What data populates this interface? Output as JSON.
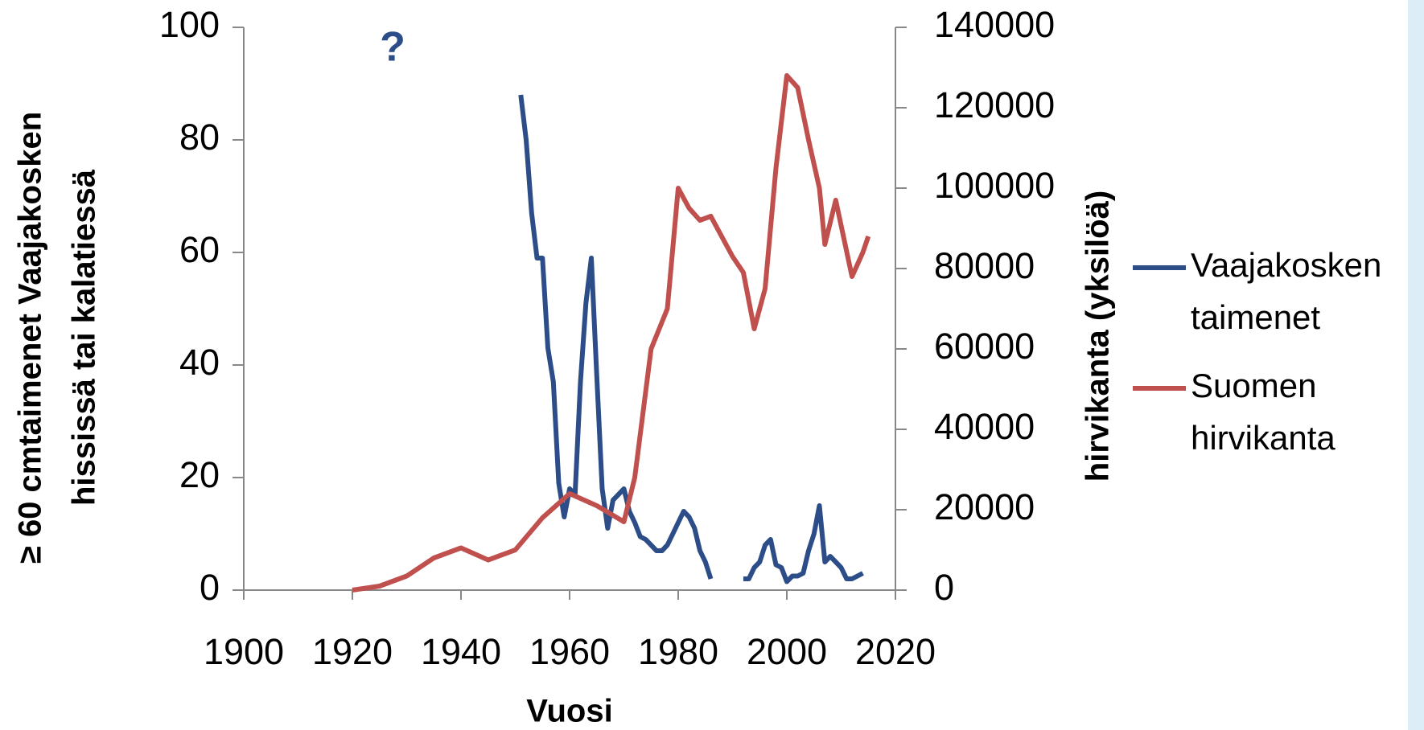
{
  "chart_data": {
    "type": "line",
    "annotation": "?",
    "xlabel": "Vuosi",
    "ylabel": [
      "≥ 60 cmtaimenet Vaajakosken",
      "hississä tai  kalatiessä"
    ],
    "y2label": "hirvikanta (yksilöä)",
    "xlim": [
      1900,
      2020
    ],
    "xticks": [
      1900,
      1920,
      1940,
      1960,
      1980,
      2000,
      2020
    ],
    "ylim": [
      0,
      100
    ],
    "yticks": [
      0,
      20,
      40,
      60,
      80,
      100
    ],
    "y2lim": [
      0,
      140000
    ],
    "y2ticks": [
      0,
      20000,
      40000,
      60000,
      80000,
      100000,
      120000,
      140000
    ],
    "grid": false,
    "legend": "right",
    "series": [
      {
        "name": "Vaajakosken taimenet",
        "color": "#2c4d87",
        "x": [
          1951,
          1952,
          1953,
          1954,
          1955,
          1956,
          1957,
          1958,
          1959,
          1960,
          1961,
          1962,
          1963,
          1964,
          1965,
          1966,
          1967,
          1968,
          1969,
          1970,
          1971,
          1972,
          1973,
          1974,
          1975,
          1976,
          1977,
          1978,
          1979,
          1980,
          1981,
          1982,
          1983,
          1984,
          1985,
          1986,
          1987,
          1992,
          1993,
          1994,
          1995,
          1996,
          1997,
          1998,
          1999,
          2000,
          2001,
          2002,
          2003,
          2004,
          2005,
          2006,
          2007,
          2008,
          2009,
          2010,
          2011,
          2012,
          2013,
          2014
        ],
        "values": [
          88,
          80,
          67,
          59,
          59,
          43,
          37,
          19,
          13,
          18,
          17,
          37,
          51,
          59,
          38,
          18,
          11,
          16,
          17,
          18,
          14,
          12,
          9.5,
          9,
          8,
          7,
          7,
          8,
          10,
          12,
          14,
          13,
          11,
          7,
          5,
          2,
          null,
          2,
          2,
          4,
          5,
          8,
          9,
          4.5,
          4,
          1.5,
          2.5,
          2.5,
          3,
          7,
          10,
          15,
          5,
          6,
          5,
          4,
          2,
          2,
          2.5,
          3
        ]
      },
      {
        "name": "Suomen hirvikanta",
        "color": "#c0504d",
        "axis": "y2",
        "x": [
          1920,
          1925,
          1930,
          1935,
          1940,
          1945,
          1950,
          1955,
          1960,
          1965,
          1970,
          1972,
          1975,
          1978,
          1980,
          1982,
          1984,
          1986,
          1990,
          1992,
          1994,
          1996,
          1998,
          2000,
          2002,
          2004,
          2006,
          2007,
          2009,
          2012,
          2014,
          2015
        ],
        "values": [
          0,
          1000,
          3500,
          8000,
          10500,
          7500,
          10000,
          18000,
          24000,
          21000,
          17000,
          28000,
          60000,
          70000,
          100000,
          95000,
          92000,
          93000,
          83000,
          79000,
          65000,
          75000,
          105000,
          128000,
          125000,
          112000,
          100000,
          86000,
          97000,
          78000,
          84000,
          88000
        ]
      }
    ]
  }
}
